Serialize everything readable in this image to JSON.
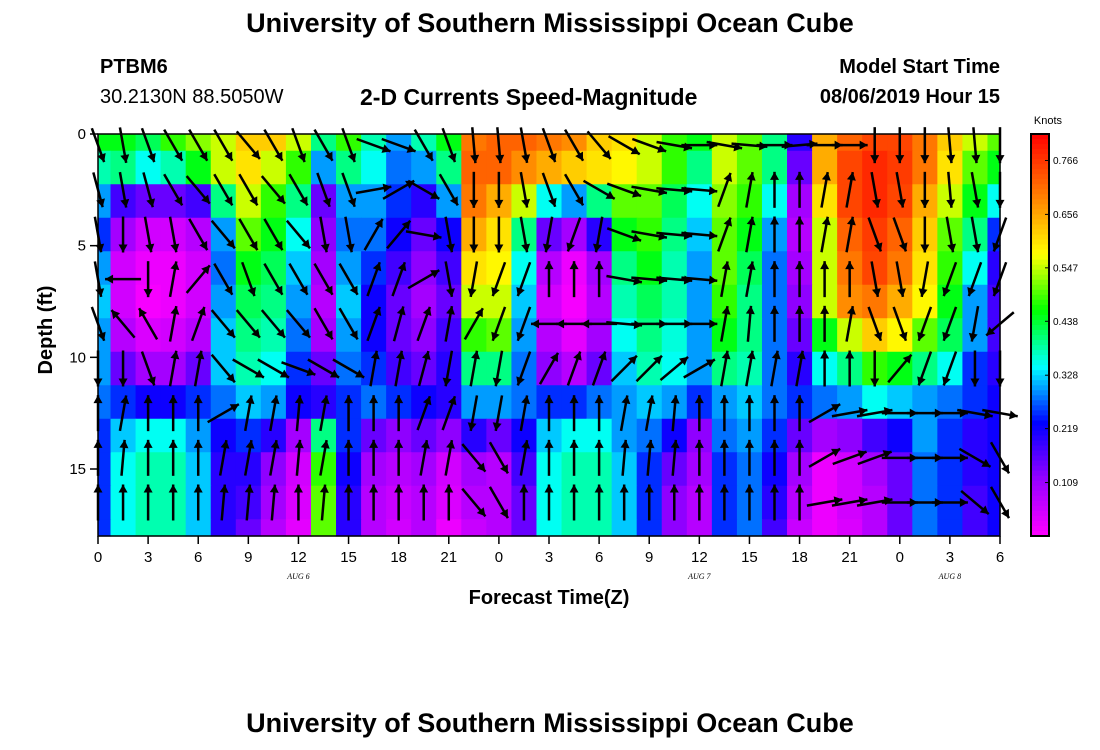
{
  "header": {
    "title": "University of Southern Mississippi Ocean Cube",
    "station_id": "PTBM6",
    "station_coords": "30.2130N 88.5050W",
    "plot_title": "2-D Currents Speed-Magnitude",
    "model_start_label": "Model Start Time",
    "model_start_value": "08/06/2019 Hour 15"
  },
  "footer": {
    "title": "University of Southern Mississippi Ocean Cube"
  },
  "colors": {
    "background": "#ffffff",
    "arrow": "#000000",
    "axis": "#000000"
  },
  "chart_data": {
    "type": "heatmap",
    "xlabel": "Forecast Time(Z)",
    "ylabel": "Depth (ft)",
    "x_tick_labels": [
      "0",
      "3",
      "6",
      "9",
      "12",
      "15",
      "18",
      "21",
      "0",
      "3",
      "6",
      "9",
      "12",
      "15",
      "18",
      "21",
      "0",
      "3",
      "6"
    ],
    "x_range_hours": [
      0,
      54
    ],
    "date_labels": [
      {
        "hour": 12,
        "label": "AUG 6"
      },
      {
        "hour": 36,
        "label": "AUG 7"
      },
      {
        "hour": 51,
        "label": "AUG 8"
      }
    ],
    "y_range_ft": [
      0,
      18
    ],
    "y_ticks": [
      0,
      5,
      10,
      15
    ],
    "colorbar": {
      "title": "Knots",
      "tick_labels": [
        "0.766",
        "0.656",
        "0.547",
        "0.438",
        "0.328",
        "0.219",
        "0.109"
      ],
      "tick_values": [
        0.766,
        0.656,
        0.547,
        0.438,
        0.328,
        0.219,
        0.109
      ],
      "range": [
        0,
        0.82
      ]
    },
    "speed_grid_depths_ft": [
      0,
      1.5,
      3,
      4.5,
      6,
      7.5,
      9,
      10.5,
      12,
      13.5,
      15,
      16.5,
      18
    ],
    "speed_grid_hours": [
      0,
      1.5,
      3,
      4.5,
      6,
      7.5,
      9,
      10.5,
      12,
      13.5,
      15,
      16.5,
      18,
      19.5,
      21,
      22.5,
      24,
      25.5,
      27,
      28.5,
      30,
      31.5,
      33,
      34.5,
      36,
      37.5,
      39,
      40.5,
      42,
      43.5,
      45,
      46.5,
      48,
      49.5,
      51,
      52.5,
      54
    ],
    "speed_grid_knots": [
      [
        0.45,
        0.45,
        0.42,
        0.48,
        0.52,
        0.55,
        0.62,
        0.62,
        0.55,
        0.4,
        0.48,
        0.38,
        0.3,
        0.38,
        0.45,
        0.7,
        0.72,
        0.72,
        0.7,
        0.68,
        0.62,
        0.6,
        0.55,
        0.48,
        0.45,
        0.55,
        0.5,
        0.4,
        0.2,
        0.65,
        0.72,
        0.75,
        0.75,
        0.7,
        0.62,
        0.55,
        0.5
      ],
      [
        0.38,
        0.4,
        0.35,
        0.38,
        0.45,
        0.55,
        0.6,
        0.55,
        0.48,
        0.3,
        0.4,
        0.35,
        0.28,
        0.3,
        0.4,
        0.72,
        0.72,
        0.68,
        0.65,
        0.62,
        0.6,
        0.58,
        0.55,
        0.48,
        0.4,
        0.55,
        0.5,
        0.4,
        0.15,
        0.65,
        0.75,
        0.78,
        0.76,
        0.7,
        0.6,
        0.5,
        0.45
      ],
      [
        0.3,
        0.18,
        0.15,
        0.15,
        0.18,
        0.4,
        0.55,
        0.48,
        0.4,
        0.15,
        0.3,
        0.3,
        0.25,
        0.2,
        0.3,
        0.7,
        0.65,
        0.55,
        0.35,
        0.3,
        0.4,
        0.5,
        0.5,
        0.42,
        0.35,
        0.52,
        0.48,
        0.35,
        0.1,
        0.6,
        0.75,
        0.78,
        0.75,
        0.65,
        0.55,
        0.45,
        0.35
      ],
      [
        0.25,
        0.1,
        0.05,
        0.05,
        0.08,
        0.3,
        0.5,
        0.45,
        0.35,
        0.12,
        0.28,
        0.28,
        0.22,
        0.15,
        0.22,
        0.65,
        0.6,
        0.4,
        0.15,
        0.1,
        0.2,
        0.45,
        0.48,
        0.4,
        0.32,
        0.5,
        0.45,
        0.3,
        0.08,
        0.55,
        0.72,
        0.76,
        0.72,
        0.62,
        0.5,
        0.4,
        0.25
      ],
      [
        0.3,
        0.05,
        0.02,
        0.02,
        0.05,
        0.28,
        0.45,
        0.42,
        0.32,
        0.1,
        0.3,
        0.25,
        0.18,
        0.12,
        0.18,
        0.6,
        0.58,
        0.35,
        0.08,
        0.02,
        0.1,
        0.4,
        0.45,
        0.38,
        0.3,
        0.5,
        0.42,
        0.28,
        0.1,
        0.55,
        0.7,
        0.75,
        0.7,
        0.6,
        0.48,
        0.35,
        0.2
      ],
      [
        0.32,
        0.05,
        0.01,
        0.02,
        0.05,
        0.3,
        0.42,
        0.4,
        0.3,
        0.08,
        0.32,
        0.22,
        0.15,
        0.1,
        0.15,
        0.55,
        0.55,
        0.32,
        0.05,
        0.01,
        0.08,
        0.38,
        0.42,
        0.38,
        0.3,
        0.48,
        0.4,
        0.28,
        0.12,
        0.55,
        0.68,
        0.7,
        0.65,
        0.58,
        0.45,
        0.3,
        0.18
      ],
      [
        0.3,
        0.08,
        0.04,
        0.05,
        0.08,
        0.32,
        0.4,
        0.38,
        0.28,
        0.1,
        0.3,
        0.22,
        0.15,
        0.12,
        0.18,
        0.48,
        0.5,
        0.3,
        0.08,
        0.03,
        0.1,
        0.35,
        0.4,
        0.36,
        0.3,
        0.45,
        0.4,
        0.28,
        0.15,
        0.45,
        0.55,
        0.62,
        0.58,
        0.5,
        0.42,
        0.3,
        0.18
      ],
      [
        0.3,
        0.15,
        0.1,
        0.1,
        0.15,
        0.32,
        0.38,
        0.35,
        0.25,
        0.15,
        0.28,
        0.25,
        0.18,
        0.15,
        0.2,
        0.4,
        0.4,
        0.28,
        0.12,
        0.08,
        0.15,
        0.32,
        0.38,
        0.35,
        0.3,
        0.4,
        0.38,
        0.28,
        0.2,
        0.35,
        0.4,
        0.48,
        0.45,
        0.4,
        0.35,
        0.25,
        0.2
      ],
      [
        0.28,
        0.25,
        0.22,
        0.22,
        0.25,
        0.28,
        0.32,
        0.3,
        0.22,
        0.2,
        0.25,
        0.28,
        0.25,
        0.22,
        0.2,
        0.3,
        0.3,
        0.28,
        0.25,
        0.25,
        0.28,
        0.3,
        0.32,
        0.3,
        0.25,
        0.3,
        0.32,
        0.28,
        0.25,
        0.28,
        0.3,
        0.35,
        0.32,
        0.3,
        0.28,
        0.25,
        0.22
      ],
      [
        0.25,
        0.32,
        0.35,
        0.35,
        0.3,
        0.22,
        0.25,
        0.2,
        0.1,
        0.4,
        0.25,
        0.15,
        0.12,
        0.15,
        0.12,
        0.2,
        0.15,
        0.22,
        0.32,
        0.35,
        0.35,
        0.3,
        0.28,
        0.22,
        0.12,
        0.28,
        0.3,
        0.25,
        0.15,
        0.1,
        0.12,
        0.18,
        0.22,
        0.3,
        0.25,
        0.2,
        0.22
      ],
      [
        0.25,
        0.35,
        0.38,
        0.38,
        0.32,
        0.2,
        0.2,
        0.12,
        0.05,
        0.48,
        0.22,
        0.1,
        0.08,
        0.1,
        0.05,
        0.1,
        0.08,
        0.18,
        0.35,
        0.38,
        0.38,
        0.32,
        0.25,
        0.15,
        0.1,
        0.25,
        0.28,
        0.22,
        0.1,
        0.02,
        0.05,
        0.1,
        0.15,
        0.28,
        0.25,
        0.2,
        0.22
      ],
      [
        0.25,
        0.35,
        0.38,
        0.38,
        0.32,
        0.2,
        0.18,
        0.1,
        0.04,
        0.5,
        0.2,
        0.08,
        0.06,
        0.08,
        0.04,
        0.08,
        0.08,
        0.15,
        0.35,
        0.38,
        0.38,
        0.32,
        0.25,
        0.12,
        0.08,
        0.25,
        0.28,
        0.2,
        0.08,
        0.02,
        0.05,
        0.08,
        0.15,
        0.28,
        0.25,
        0.18,
        0.22
      ],
      [
        0.25,
        0.35,
        0.38,
        0.38,
        0.32,
        0.2,
        0.15,
        0.08,
        0.03,
        0.5,
        0.2,
        0.08,
        0.05,
        0.08,
        0.02,
        0.06,
        0.08,
        0.15,
        0.35,
        0.38,
        0.38,
        0.32,
        0.25,
        0.12,
        0.08,
        0.25,
        0.28,
        0.18,
        0.06,
        0.02,
        0.04,
        0.08,
        0.15,
        0.28,
        0.25,
        0.18,
        0.22
      ]
    ],
    "arrow_hours": [
      0,
      1.5,
      3,
      4.5,
      6,
      7.5,
      9,
      10.5,
      12,
      13.5,
      15,
      16.5,
      18,
      19.5,
      21,
      22.5,
      24,
      25.5,
      27,
      28.5,
      30,
      31.5,
      33,
      34.5,
      36,
      37.5,
      39,
      40.5,
      42,
      43.5,
      45,
      46.5,
      48,
      49.5,
      51,
      52.5,
      54
    ],
    "arrow_depths_ft": [
      0.5,
      2.5,
      4.5,
      6.5,
      8.5,
      10.5,
      12.5,
      14.5,
      16.5
    ],
    "arrow_directions_deg": [
      [
        160,
        170,
        160,
        150,
        150,
        150,
        140,
        150,
        160,
        150,
        160,
        110,
        110,
        150,
        160,
        175,
        175,
        170,
        160,
        150,
        140,
        120,
        110,
        100,
        90,
        100,
        95,
        90,
        85,
        90,
        90,
        180,
        180,
        180,
        175,
        175,
        180
      ],
      [
        165,
        170,
        165,
        150,
        140,
        150,
        150,
        140,
        150,
        160,
        160,
        80,
        60,
        120,
        150,
        180,
        180,
        170,
        160,
        150,
        120,
        110,
        100,
        95,
        95,
        20,
        10,
        0,
        0,
        10,
        10,
        170,
        170,
        180,
        175,
        170,
        180
      ],
      [
        170,
        180,
        170,
        170,
        150,
        140,
        150,
        150,
        140,
        170,
        170,
        30,
        40,
        100,
        170,
        180,
        180,
        170,
        190,
        200,
        190,
        110,
        100,
        95,
        95,
        20,
        10,
        0,
        0,
        10,
        10,
        160,
        160,
        180,
        170,
        170,
        200
      ],
      [
        170,
        270,
        180,
        10,
        40,
        150,
        160,
        150,
        150,
        150,
        150,
        20,
        20,
        60,
        170,
        190,
        200,
        200,
        0,
        0,
        0,
        100,
        95,
        95,
        95,
        10,
        10,
        0,
        0,
        0,
        0,
        170,
        170,
        190,
        200,
        200,
        200
      ],
      [
        160,
        320,
        330,
        10,
        20,
        140,
        140,
        140,
        140,
        150,
        150,
        20,
        15,
        20,
        10,
        30,
        200,
        200,
        270,
        270,
        270,
        95,
        90,
        90,
        90,
        10,
        5,
        0,
        0,
        0,
        10,
        160,
        160,
        200,
        200,
        190,
        230
      ],
      [
        180,
        180,
        160,
        10,
        10,
        140,
        120,
        120,
        110,
        120,
        120,
        10,
        10,
        15,
        190,
        10,
        190,
        200,
        30,
        20,
        20,
        45,
        45,
        50,
        60,
        10,
        10,
        10,
        10,
        0,
        0,
        180,
        40,
        200,
        200,
        180,
        180
      ],
      [
        0,
        10,
        0,
        0,
        0,
        60,
        10,
        10,
        5,
        10,
        0,
        0,
        0,
        20,
        20,
        190,
        190,
        10,
        0,
        0,
        0,
        10,
        10,
        5,
        0,
        0,
        0,
        0,
        0,
        60,
        80,
        80,
        90,
        90,
        90,
        100,
        100
      ],
      [
        0,
        5,
        0,
        0,
        0,
        10,
        10,
        10,
        5,
        10,
        0,
        0,
        0,
        10,
        10,
        140,
        150,
        10,
        0,
        0,
        0,
        5,
        5,
        5,
        0,
        0,
        0,
        0,
        0,
        60,
        70,
        70,
        90,
        90,
        90,
        120,
        150
      ],
      [
        0,
        0,
        0,
        0,
        0,
        5,
        5,
        5,
        0,
        5,
        0,
        0,
        0,
        0,
        0,
        140,
        150,
        0,
        0,
        0,
        0,
        0,
        0,
        0,
        0,
        0,
        0,
        0,
        0,
        80,
        80,
        80,
        90,
        90,
        90,
        130,
        150
      ]
    ],
    "grid": false,
    "legend": "right colorbar"
  }
}
